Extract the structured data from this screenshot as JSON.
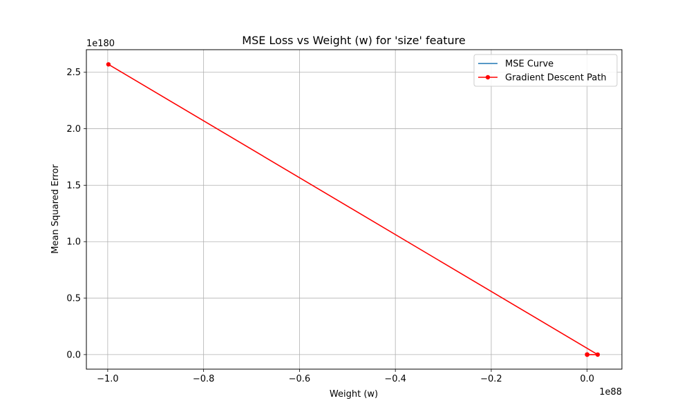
{
  "chart_data": {
    "type": "line",
    "title": "MSE Loss vs Weight (w) for 'size' feature",
    "xlabel": "Weight (w)",
    "ylabel": "Mean Squared Error",
    "x_scale_label": "1e88",
    "y_scale_label": "1e180",
    "x_scale": 1e+88,
    "y_scale": 1e+180,
    "xlim": [
      -1.0445,
      0.0725
    ],
    "ylim": [
      -0.129,
      2.7
    ],
    "x_ticks": [
      -1.0,
      -0.8,
      -0.6,
      -0.4,
      -0.2,
      0.0
    ],
    "x_tick_labels": [
      "−1.0",
      "−0.8",
      "−0.6",
      "−0.4",
      "−0.2",
      "0.0"
    ],
    "y_ticks": [
      0.0,
      0.5,
      1.0,
      1.5,
      2.0,
      2.5
    ],
    "y_tick_labels": [
      "0.0",
      "0.5",
      "1.0",
      "1.5",
      "2.0",
      "2.5"
    ],
    "grid": true,
    "legend_position": "top-right",
    "series": [
      {
        "name": "MSE Curve",
        "color": "#1f77b4",
        "marker": "none",
        "x": [
          -1e-05,
          1e-05
        ],
        "y": [
          0.0,
          0.0
        ]
      },
      {
        "name": "Gradient Descent Path",
        "color": "#ff0000",
        "marker": "circle",
        "x": [
          0.0,
          0.0,
          0.0,
          0.0,
          0.0,
          0.0,
          0.0,
          0.0,
          0.022,
          -0.9985
        ],
        "y": [
          0.0,
          0.0,
          0.0,
          0.0,
          0.0,
          0.0,
          0.0,
          0.0,
          0.0,
          2.57
        ]
      }
    ]
  }
}
